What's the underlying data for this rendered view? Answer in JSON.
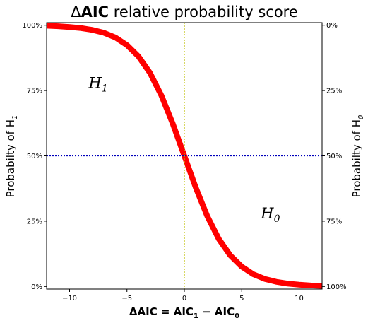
{
  "chart_data": {
    "type": "line",
    "title_delta": "Δ",
    "title_bold": "AIC",
    "title_rest": " relative probability score",
    "xlabel_bold": "ΔAIC = AIC",
    "xlabel_sub1": "1",
    "xlabel_mid": " − AIC",
    "xlabel_sub0": "0",
    "ylabel_left": "Probabilty of H",
    "ylabel_left_sub": "1",
    "ylabel_right": "Probabilty of H",
    "ylabel_right_sub": "0",
    "xlim": [
      -12,
      12
    ],
    "ylim": [
      -0.01,
      1.01
    ],
    "x_ticks": [
      -10,
      -5,
      0,
      5,
      10
    ],
    "x_tick_labels": [
      "−10",
      "−5",
      "0",
      "5",
      "10"
    ],
    "y_ticks": [
      0,
      0.25,
      0.5,
      0.75,
      1.0
    ],
    "y_left_tick_labels": [
      "0%",
      "25%",
      "50%",
      "75%",
      "100%"
    ],
    "y_right_tick_labels": [
      "100%",
      "75%",
      "50%",
      "25%",
      "0%"
    ],
    "annotations": [
      {
        "text": "H",
        "sub": "1",
        "x": -7.5,
        "y": 0.76
      },
      {
        "text": "H",
        "sub": "0",
        "x": 7.5,
        "y": 0.26
      }
    ],
    "reference_lines": {
      "vertical_x": 0,
      "horizontal_y": 0.5
    },
    "series": [
      {
        "x": [
          -12,
          -11,
          -10,
          -9,
          -8,
          -7,
          -6,
          -5,
          -4,
          -3,
          -2,
          -1,
          0,
          1,
          2,
          3,
          4,
          5,
          6,
          7,
          8,
          9,
          10,
          11,
          12
        ],
        "values": [
          0.998,
          0.996,
          0.993,
          0.989,
          0.982,
          0.971,
          0.953,
          0.924,
          0.881,
          0.818,
          0.731,
          0.622,
          0.5,
          0.378,
          0.269,
          0.182,
          0.119,
          0.076,
          0.047,
          0.029,
          0.018,
          0.011,
          0.007,
          0.004,
          0.002
        ]
      }
    ],
    "colors": {
      "curve": "#ff0000",
      "vertical_line": "#bfbf00",
      "horizontal_line": "#0000bb"
    }
  }
}
